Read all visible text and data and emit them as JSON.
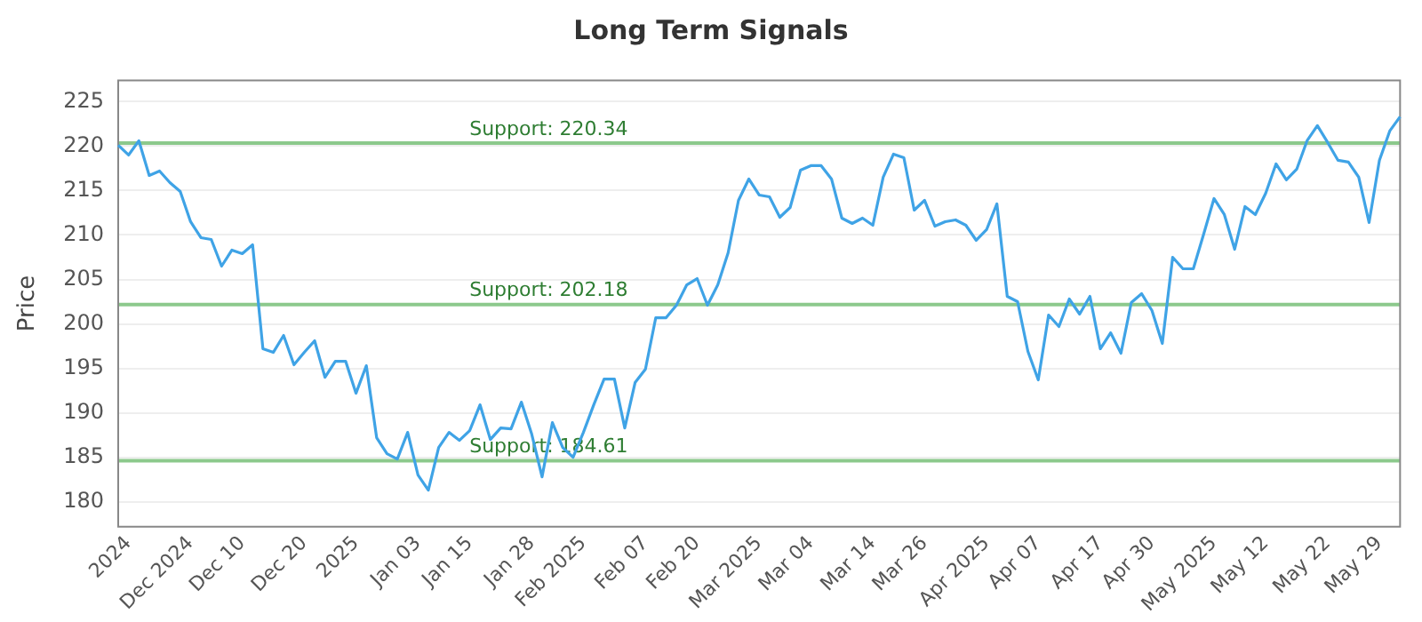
{
  "chart_data": {
    "type": "line",
    "title": "Long Term Signals",
    "ylabel": "Price",
    "categories": [
      null,
      "2024",
      null,
      null,
      null,
      null,
      null,
      "Dec 2024",
      null,
      null,
      null,
      null,
      "Dec 10",
      null,
      null,
      null,
      null,
      null,
      "Dec 20",
      null,
      null,
      null,
      null,
      "2025",
      null,
      null,
      null,
      null,
      null,
      "Jan 03",
      null,
      null,
      null,
      null,
      "Jan 15",
      null,
      null,
      null,
      null,
      null,
      "Jan 28",
      null,
      null,
      null,
      null,
      "Feb 2025",
      null,
      null,
      null,
      null,
      null,
      "Feb 07",
      null,
      null,
      null,
      null,
      "Feb 20",
      null,
      null,
      null,
      null,
      null,
      "Mar 2025",
      null,
      null,
      null,
      null,
      "Mar 04",
      null,
      null,
      null,
      null,
      null,
      "Mar 14",
      null,
      null,
      null,
      null,
      "Mar 26",
      null,
      null,
      null,
      null,
      null,
      "Apr 2025",
      null,
      null,
      null,
      null,
      "Apr 07",
      null,
      null,
      null,
      null,
      null,
      "Apr 17",
      null,
      null,
      null,
      null,
      "Apr 30",
      null,
      null,
      null,
      null,
      null,
      "May 2025",
      null,
      null,
      null,
      null,
      "May 12",
      null,
      null,
      null,
      null,
      null,
      "May 22",
      null,
      null,
      null,
      null,
      "May 29",
      null,
      null
    ],
    "series": [
      {
        "color": "#3fa3e6",
        "values": [
          220.1,
          219.0,
          220.6,
          216.7,
          217.2,
          215.9,
          214.9,
          211.5,
          209.7,
          209.5,
          206.5,
          208.3,
          207.9,
          208.9,
          197.2,
          196.8,
          198.7,
          195.4,
          196.8,
          198.1,
          194.0,
          195.8,
          195.8,
          192.2,
          195.3,
          187.2,
          185.4,
          184.8,
          187.8,
          183.0,
          181.3,
          186.1,
          187.8,
          186.9,
          188.0,
          190.9,
          187.0,
          188.3,
          188.2,
          191.2,
          187.6,
          182.8,
          188.9,
          186.1,
          185.0,
          187.8,
          190.9,
          193.8,
          193.8,
          188.3,
          193.4,
          194.9,
          200.7,
          200.7,
          202.1,
          204.4,
          205.1,
          202.1,
          204.4,
          208.0,
          213.9,
          216.3,
          214.5,
          214.3,
          212.0,
          213.1,
          217.3,
          217.8,
          217.8,
          216.3,
          211.9,
          211.3,
          211.9,
          211.1,
          216.5,
          219.1,
          218.7,
          212.8,
          213.9,
          211.0,
          211.5,
          211.7,
          211.1,
          209.4,
          210.6,
          213.5,
          203.1,
          202.5,
          196.9,
          193.7,
          201.0,
          199.7,
          202.8,
          201.1,
          203.1,
          197.2,
          199.0,
          196.7,
          202.4,
          203.4,
          201.5,
          197.8,
          207.5,
          206.2,
          206.2,
          210.1,
          214.1,
          212.3,
          208.4,
          213.2,
          212.3,
          214.7,
          218.0,
          216.2,
          217.4,
          220.6,
          222.3,
          220.4,
          218.4,
          218.2,
          216.5,
          211.4,
          218.4,
          221.7,
          223.3
        ]
      }
    ],
    "ylim": [
      177.2,
      227.4
    ],
    "yticks": [
      180,
      185,
      190,
      195,
      200,
      205,
      210,
      215,
      220,
      225
    ],
    "ref_lines": [
      {
        "axis": "y",
        "value": 220.34,
        "label": "Support: 220.34",
        "color": "#8cc98c"
      },
      {
        "axis": "y",
        "value": 202.18,
        "label": "Support: 202.18",
        "color": "#8cc98c"
      },
      {
        "axis": "y",
        "value": 184.61,
        "label": "Support: 184.61",
        "color": "#8cc98c"
      }
    ],
    "grid": "y",
    "legend": false,
    "marker": "none",
    "line_style": "solid"
  }
}
